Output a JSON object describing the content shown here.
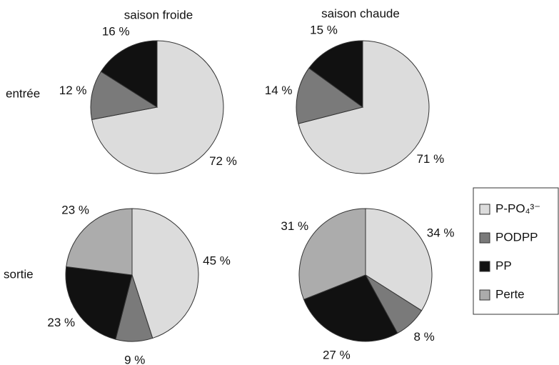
{
  "column_labels": [
    "saison froide",
    "saison chaude"
  ],
  "row_labels": [
    "entrée",
    "sortie"
  ],
  "chart_data": [
    {
      "type": "pie",
      "categories": [
        "P-PO₄³⁻",
        "PODPP",
        "PP"
      ],
      "values": [
        72,
        12,
        16
      ],
      "value_labels": [
        "72 %",
        "12 %",
        "16 %"
      ],
      "colors": [
        "#dcdcdc",
        "#7a7a7a",
        "#111111"
      ]
    },
    {
      "type": "pie",
      "categories": [
        "P-PO₄³⁻",
        "PODPP",
        "PP"
      ],
      "values": [
        71,
        14,
        15
      ],
      "value_labels": [
        "71 %",
        "14 %",
        "15 %"
      ],
      "colors": [
        "#dcdcdc",
        "#7a7a7a",
        "#111111"
      ]
    },
    {
      "type": "pie",
      "categories": [
        "P-PO₄³⁻",
        "PODPP",
        "PP",
        "Perte"
      ],
      "values": [
        45,
        9,
        23,
        23
      ],
      "value_labels": [
        "45 %",
        "9 %",
        "23 %",
        "23 %"
      ],
      "colors": [
        "#dcdcdc",
        "#7a7a7a",
        "#111111",
        "#acacac"
      ]
    },
    {
      "type": "pie",
      "categories": [
        "P-PO₄³⁻",
        "PODPP",
        "PP",
        "Perte"
      ],
      "values": [
        34,
        8,
        27,
        31
      ],
      "value_labels": [
        "34 %",
        "8 %",
        "27 %",
        "31 %"
      ],
      "colors": [
        "#dcdcdc",
        "#7a7a7a",
        "#111111",
        "#acacac"
      ]
    }
  ]
}
